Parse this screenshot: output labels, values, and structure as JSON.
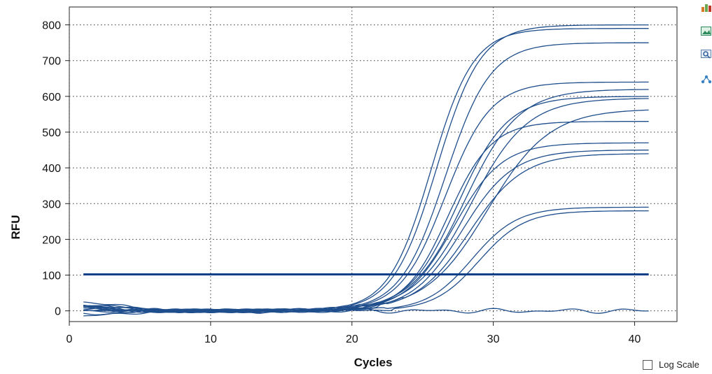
{
  "chart_data": {
    "type": "line",
    "title": "",
    "xlabel": "Cycles",
    "ylabel": "RFU",
    "xlim": [
      0,
      43
    ],
    "ylim": [
      -30,
      850
    ],
    "x_ticks": [
      0,
      10,
      20,
      30,
      40
    ],
    "y_ticks": [
      0,
      100,
      200,
      300,
      400,
      500,
      600,
      700,
      800
    ],
    "grid": true,
    "threshold": 102,
    "line_color": "#1f4e8c",
    "threshold_color": "#0f3f86",
    "cycle_range": [
      1,
      41
    ],
    "amplification_curves": [
      {
        "plateau": 800,
        "midpoint": 26.0,
        "slope": 1.55,
        "start": 14
      },
      {
        "plateau": 790,
        "midpoint": 25.6,
        "slope": 1.5,
        "start": 8
      },
      {
        "plateau": 750,
        "midpoint": 26.6,
        "slope": 1.6,
        "start": 18
      },
      {
        "plateau": 640,
        "midpoint": 26.6,
        "slope": 1.6,
        "start": 12
      },
      {
        "plateau": 600,
        "midpoint": 27.5,
        "slope": 1.75,
        "start": 6
      },
      {
        "plateau": 620,
        "midpoint": 28.0,
        "slope": 1.9,
        "start": -8
      },
      {
        "plateau": 595,
        "midpoint": 28.4,
        "slope": 2.0,
        "start": 20
      },
      {
        "plateau": 565,
        "midpoint": 29.6,
        "slope": 2.2,
        "start": 4
      },
      {
        "plateau": 530,
        "midpoint": 26.8,
        "slope": 1.55,
        "start": 10
      },
      {
        "plateau": 470,
        "midpoint": 27.2,
        "slope": 1.7,
        "start": 2
      },
      {
        "plateau": 450,
        "midpoint": 27.8,
        "slope": 1.8,
        "start": 26
      },
      {
        "plateau": 440,
        "midpoint": 28.3,
        "slope": 1.9,
        "start": -18
      },
      {
        "plateau": 290,
        "midpoint": 28.5,
        "slope": 1.6,
        "start": 14
      },
      {
        "plateau": 280,
        "midpoint": 29.0,
        "slope": 1.6,
        "start": 6
      }
    ],
    "flat_curve_level": 0
  },
  "controls": {
    "log_scale_label": "Log Scale",
    "log_scale_checked": false
  },
  "side_icons": [
    "bar-chart-icon",
    "image-icon",
    "zoom-icon",
    "nodes-icon"
  ]
}
